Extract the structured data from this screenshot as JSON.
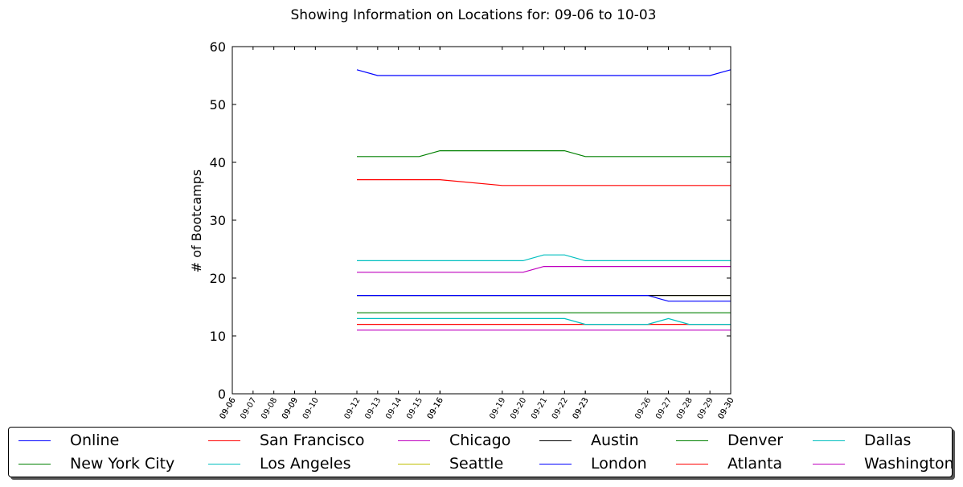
{
  "chart_data": {
    "type": "line",
    "title": "Showing Information on Locations for: 09-06 to 10-03",
    "xlabel": "",
    "ylabel": "# of Bootcamps",
    "ylim": [
      0,
      60
    ],
    "yticks": [
      0,
      10,
      20,
      30,
      40,
      50,
      60
    ],
    "xlim": [
      "09-06",
      "09-30"
    ],
    "xticks": [
      "09-06",
      "09-06",
      "09-07",
      "09-08",
      "09-09",
      "09-09",
      "09-10",
      "09-12",
      "09-13",
      "09-14",
      "09-15",
      "09-16",
      "09-16",
      "09-19",
      "09-20",
      "09-21",
      "09-22",
      "09-23",
      "09-23",
      "09-26",
      "09-27",
      "09-28",
      "09-29",
      "09-30",
      "09-30"
    ],
    "x": [
      "09-12",
      "09-13",
      "09-14",
      "09-15",
      "09-16",
      "09-19",
      "09-20",
      "09-21",
      "09-22",
      "09-23",
      "09-26",
      "09-27",
      "09-28",
      "09-29",
      "09-30"
    ],
    "grid": false,
    "legend_position": "bottom",
    "series": [
      {
        "name": "Online",
        "color": "#0000ff",
        "values": [
          56,
          55,
          55,
          55,
          55,
          55,
          55,
          55,
          55,
          55,
          55,
          55,
          55,
          55,
          56
        ]
      },
      {
        "name": "New York City",
        "color": "#008000",
        "values": [
          41,
          41,
          41,
          41,
          42,
          42,
          42,
          42,
          42,
          41,
          41,
          41,
          41,
          41,
          41
        ]
      },
      {
        "name": "San Francisco",
        "color": "#ff0000",
        "values": [
          37,
          37,
          37,
          37,
          37,
          36,
          36,
          36,
          36,
          36,
          36,
          36,
          36,
          36,
          36
        ]
      },
      {
        "name": "Los Angeles",
        "color": "#00bfbf",
        "values": [
          23,
          23,
          23,
          23,
          23,
          23,
          23,
          24,
          24,
          23,
          23,
          23,
          23,
          23,
          23
        ]
      },
      {
        "name": "Chicago",
        "color": "#bf00bf",
        "values": [
          21,
          21,
          21,
          21,
          21,
          21,
          21,
          22,
          22,
          22,
          22,
          22,
          22,
          22,
          22
        ]
      },
      {
        "name": "Seattle",
        "color": "#bfbf00",
        "values": [
          17,
          17,
          17,
          17,
          17,
          17,
          17,
          17,
          17,
          17,
          17,
          17,
          17,
          17,
          17
        ]
      },
      {
        "name": "Austin",
        "color": "#000000",
        "values": [
          17,
          17,
          17,
          17,
          17,
          17,
          17,
          17,
          17,
          17,
          17,
          17,
          17,
          17,
          17
        ]
      },
      {
        "name": "London",
        "color": "#0000ff",
        "values": [
          17,
          17,
          17,
          17,
          17,
          17,
          17,
          17,
          17,
          17,
          17,
          16,
          16,
          16,
          16
        ]
      },
      {
        "name": "Denver",
        "color": "#008000",
        "values": [
          14,
          14,
          14,
          14,
          14,
          14,
          14,
          14,
          14,
          14,
          14,
          14,
          14,
          14,
          14
        ]
      },
      {
        "name": "Atlanta",
        "color": "#ff0000",
        "values": [
          12,
          12,
          12,
          12,
          12,
          12,
          12,
          12,
          12,
          12,
          12,
          12,
          12,
          12,
          12
        ]
      },
      {
        "name": "Dallas",
        "color": "#00bfbf",
        "values": [
          13,
          13,
          13,
          13,
          13,
          13,
          13,
          13,
          13,
          12,
          12,
          13,
          12,
          12,
          12
        ]
      },
      {
        "name": "Washington",
        "color": "#bf00bf",
        "values": [
          11,
          11,
          11,
          11,
          11,
          11,
          11,
          11,
          11,
          11,
          11,
          11,
          11,
          11,
          11
        ]
      }
    ]
  }
}
